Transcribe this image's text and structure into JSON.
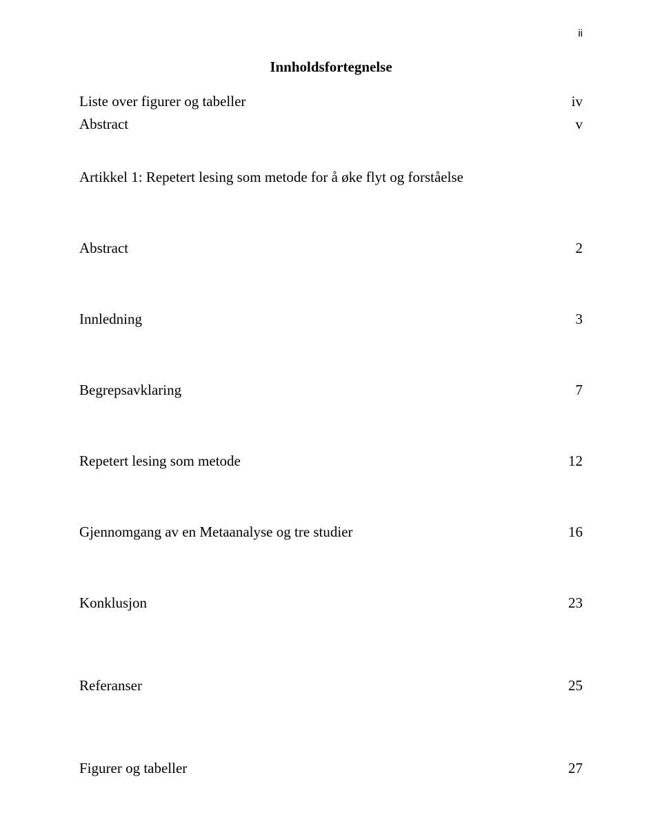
{
  "page_number": "ii",
  "title": "Innholdsfortegnelse",
  "front_matter": [
    {
      "label": "Liste over figurer og tabeller",
      "page": "iv"
    },
    {
      "label": "Abstract",
      "page": "v"
    }
  ],
  "article_heading": "Artikkel 1: Repetert lesing som metode for å øke flyt og forståelse",
  "entries": [
    {
      "label": "Abstract",
      "page": "2"
    },
    {
      "label": "Innledning",
      "page": "3"
    },
    {
      "label": "Begrepsavklaring",
      "page": "7"
    },
    {
      "label": "Repetert lesing som metode",
      "page": "12"
    },
    {
      "label": "Gjennomgang av en Metaanalyse og tre studier",
      "page": "16"
    },
    {
      "label": "Konklusjon",
      "page": "23"
    },
    {
      "label": "Referanser",
      "page": "25"
    },
    {
      "label": "Figurer og tabeller",
      "page": "27"
    }
  ]
}
